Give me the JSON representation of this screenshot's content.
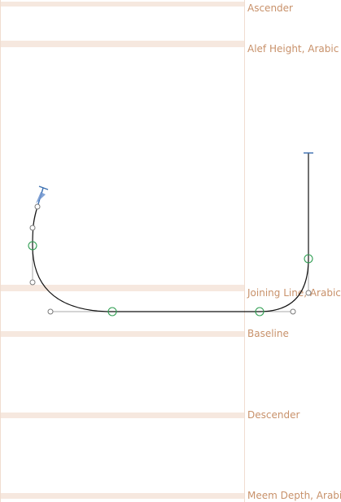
{
  "metrics": {
    "ascender": "Ascender",
    "alef_height": "Alef Height, Arabic",
    "joining_line": "Joining Line, Arabic",
    "baseline": "Baseline",
    "descender": "Descender",
    "meem_depth": "Meem Depth, Arabic"
  },
  "colors": {
    "metric_text": "#c8916a",
    "metric_band": "#f6e8df",
    "oncurve_node": "#2f9e52",
    "offcurve_handle": "#7a7a7a",
    "start_marker": "#3a6fb0",
    "outline": "#111111"
  },
  "canvas": {
    "tool": "glyph-edit-view",
    "icons": [
      "start-point-marker-icon",
      "path-direction-arrow-icon"
    ]
  }
}
